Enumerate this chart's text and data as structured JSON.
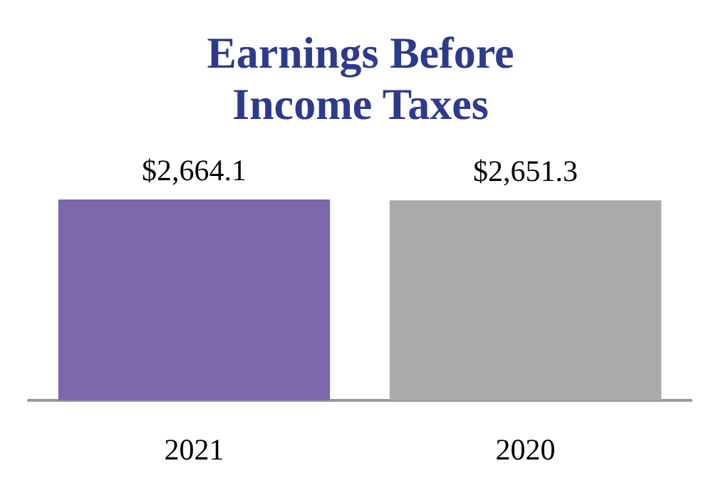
{
  "chart_data": {
    "type": "bar",
    "title": "Earnings Before\nIncome Taxes",
    "categories": [
      "2021",
      "2020"
    ],
    "values": [
      2664.1,
      2651.3
    ],
    "colors": [
      "#7b68ad",
      "#aaaaaa"
    ],
    "value_labels": [
      "$2,664.1",
      "$2,651.3"
    ]
  }
}
